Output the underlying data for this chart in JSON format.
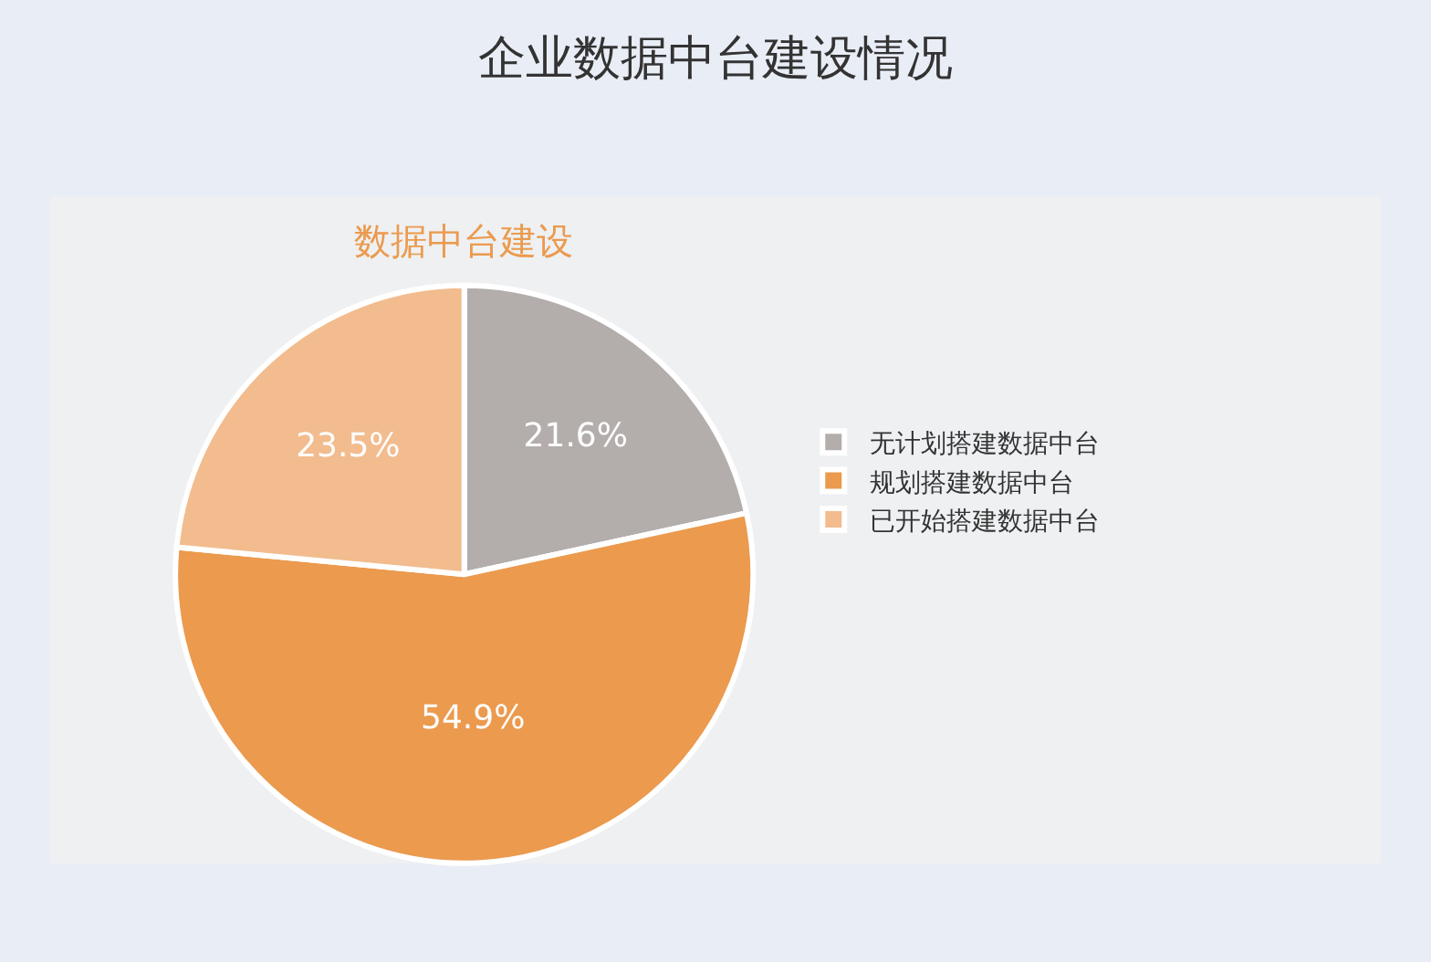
{
  "chart_data": {
    "type": "pie",
    "title": "企业数据中台建设情况",
    "subtitle": "数据中台建设",
    "categories": [
      "无计划搭建数据中台",
      "规划搭建数据中台",
      "已开始搭建数据中台"
    ],
    "values": [
      21.6,
      54.9,
      23.5
    ],
    "colors": [
      "#b3aeac",
      "#eb9a4e",
      "#f2bc8e"
    ],
    "value_labels": [
      "21.6%",
      "54.9%",
      "23.5%"
    ],
    "legend": "right"
  }
}
